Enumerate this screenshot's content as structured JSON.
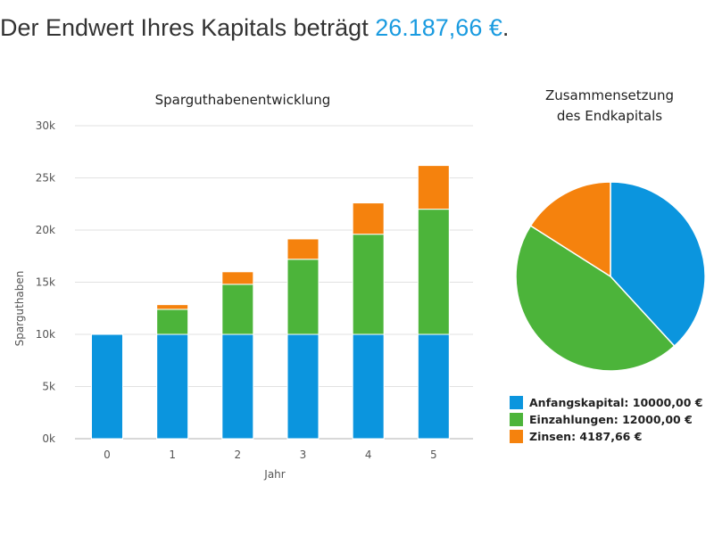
{
  "header": {
    "prefix": "Der Endwert Ihres Kapitals beträgt",
    "amount": "26.187,66 €",
    "suffix": "."
  },
  "colors": {
    "anfang": "#0b95de",
    "einzahl": "#4cb43a",
    "zinsen": "#f5820d",
    "amount_text": "#1a9be0"
  },
  "chart_data": [
    {
      "type": "bar",
      "stacked": true,
      "title": "Sparguthabenentwicklung",
      "xlabel": "Jahr",
      "ylabel": "Sparguthaben",
      "ylim": [
        0,
        30000
      ],
      "yticks": [
        0,
        5000,
        10000,
        15000,
        20000,
        25000,
        30000
      ],
      "ytick_labels": [
        "0k",
        "5k",
        "10k",
        "15k",
        "20k",
        "25k",
        "30k"
      ],
      "categories": [
        "0",
        "1",
        "2",
        "3",
        "4",
        "5"
      ],
      "grid": true,
      "series": [
        {
          "key": "anfang",
          "values": [
            10000,
            10000,
            10000,
            10000,
            10000,
            10000
          ]
        },
        {
          "key": "einzahl",
          "values": [
            0,
            2400,
            4800,
            7200,
            9600,
            12000
          ]
        },
        {
          "key": "zinsen",
          "values": [
            0,
            450,
            1200,
            1950,
            3000,
            4187.66
          ]
        }
      ]
    },
    {
      "type": "pie",
      "title_lines": [
        "Zusammensetzung",
        "des Endkapitals"
      ],
      "slices": [
        {
          "key": "anfang",
          "value": 10000,
          "legend": "Anfangskapital: 10000,00 €"
        },
        {
          "key": "einzahl",
          "value": 12000,
          "legend": "Einzahlungen: 12000,00 €"
        },
        {
          "key": "zinsen",
          "value": 4187.66,
          "legend": "Zinsen: 4187,66 €"
        }
      ],
      "legend_position": "bottom"
    }
  ]
}
